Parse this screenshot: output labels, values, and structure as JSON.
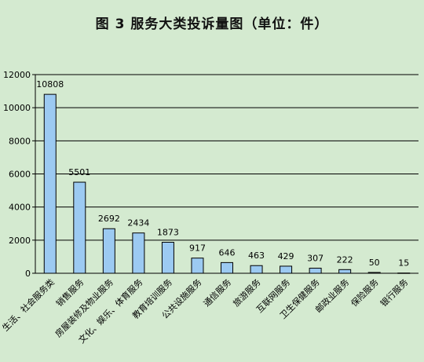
{
  "chart_data": {
    "type": "bar",
    "title": "图 3    服务大类投诉量图（单位：件）",
    "categories": [
      "生活、社会服务类",
      "销售服务",
      "房屋装修及物业服务",
      "文化、娱乐、体育服务",
      "教育培训服务",
      "公共设施服务",
      "通信服务",
      "旅游服务",
      "互联网服务",
      "卫生保健服务",
      "邮政业服务",
      "保险服务",
      "银行服务"
    ],
    "values": [
      10808,
      5501,
      2692,
      2434,
      1873,
      917,
      646,
      463,
      429,
      307,
      222,
      50,
      15
    ],
    "ylim": [
      0,
      12000
    ],
    "yticks": [
      0,
      2000,
      4000,
      6000,
      8000,
      10000,
      12000
    ],
    "grid": true,
    "bar_color": "#9ccaf2",
    "background_color": "#d4ead0"
  }
}
